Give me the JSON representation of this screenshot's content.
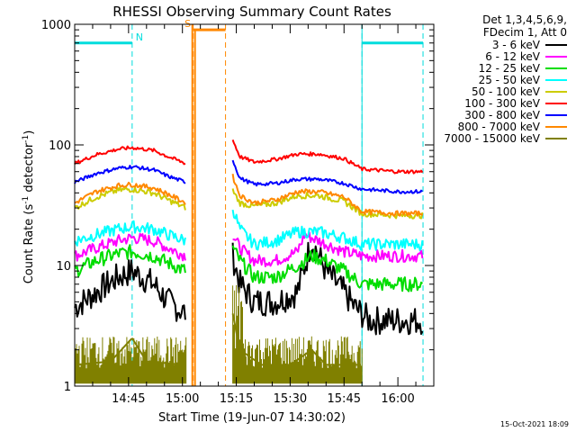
{
  "colors": {
    "3-6": "#000000",
    "6-12": "#ff00ff",
    "12-25": "#00dd00",
    "25-50": "#00ffff",
    "50-100": "#cccc00",
    "100-300": "#ff0000",
    "300-800": "#0000ff",
    "800-7000": "#ff8800",
    "7000-15000": "#808000",
    "flag_n": "#00dddd",
    "flag_s": "#ff8800"
  },
  "chart_data": {
    "type": "line",
    "title": "RHESSI Observing Summary Count Rates",
    "xlabel": "Start Time (19-Jun-07 14:30:02)",
    "ylabel": "Count Rate (s⁻¹ detector⁻¹)",
    "ylabel_parts": [
      "Count Rate (s",
      "-1",
      " detector",
      "-1",
      ")"
    ],
    "yscale": "log",
    "ylim": [
      1,
      1000
    ],
    "xlim": [
      "14:30",
      "16:10"
    ],
    "x_ticks": [
      "14:45",
      "15:00",
      "15:15",
      "15:30",
      "15:45",
      "16:00"
    ],
    "y_ticks": [
      "1",
      "10",
      "100",
      "1000"
    ],
    "legend_header": [
      "Det 1,3,4,5,6,9,",
      "FDecim 1, Att 0"
    ],
    "legend_position": "top-right",
    "footer_date": "15-Oct-2021 18:09",
    "flags": [
      {
        "label": "N",
        "color": "flag_n",
        "intervals": [
          [
            "14:30",
            "14:46"
          ],
          [
            "15:50",
            "16:07"
          ]
        ],
        "level": 700
      },
      {
        "label": "S",
        "color": "flag_s",
        "intervals": [
          [
            "15:03",
            "15:12"
          ]
        ],
        "level": 900
      }
    ],
    "night_boundaries": [
      "14:46",
      "15:50",
      "16:07"
    ],
    "saa_boundaries": [
      "15:03",
      "15:12"
    ],
    "gap": [
      "15:02",
      "15:14"
    ],
    "series": [
      {
        "name": "3 - 6 keV",
        "color": "3-6",
        "segments": [
          {
            "x": [
              "14:30",
              "14:36",
              "14:42",
              "14:46",
              "14:52",
              "14:56",
              "15:01"
            ],
            "y": [
              4.5,
              6,
              8,
              9,
              7,
              5,
              4
            ]
          },
          {
            "x": [
              "15:14",
              "15:16",
              "15:20",
              "15:26",
              "15:32",
              "15:36",
              "15:40",
              "15:45",
              "15:48",
              "15:52",
              "16:00",
              "16:07"
            ],
            "y": [
              12,
              7,
              5,
              5,
              6,
              16,
              9,
              6,
              4.5,
              3.5,
              3.5,
              3.5
            ]
          }
        ]
      },
      {
        "name": "6 - 12 keV",
        "color": "6-12",
        "segments": [
          {
            "x": [
              "14:30",
              "14:36",
              "14:42",
              "14:46",
              "14:52",
              "14:56",
              "15:01"
            ],
            "y": [
              12,
              14,
              16,
              17,
              16,
              14,
              12
            ]
          },
          {
            "x": [
              "15:14",
              "15:16",
              "15:20",
              "15:26",
              "15:32",
              "15:34",
              "15:38",
              "15:45",
              "15:50",
              "15:55",
              "16:00",
              "16:07"
            ],
            "y": [
              18,
              14,
              11,
              11,
              13,
              18,
              16,
              13,
              12,
              12,
              12,
              12
            ]
          }
        ]
      },
      {
        "name": "12 - 25 keV",
        "color": "12-25",
        "segments": [
          {
            "x": [
              "14:30",
              "14:36",
              "14:42",
              "14:46",
              "14:52",
              "14:56",
              "15:01"
            ],
            "y": [
              9,
              11,
              12.5,
              13,
              12,
              10.5,
              9
            ]
          },
          {
            "x": [
              "15:14",
              "15:16",
              "15:20",
              "15:26",
              "15:32",
              "15:36",
              "15:40",
              "15:45",
              "15:50",
              "16:00",
              "16:07"
            ],
            "y": [
              14,
              11,
              8,
              8,
              10,
              12,
              11,
              9,
              7,
              7,
              7
            ]
          }
        ]
      },
      {
        "name": "25 - 50 keV",
        "color": "25-50",
        "segments": [
          {
            "x": [
              "14:30",
              "14:36",
              "14:42",
              "14:46",
              "14:52",
              "14:56",
              "15:01"
            ],
            "y": [
              16,
              18,
              20,
              21,
              20,
              18,
              16
            ]
          },
          {
            "x": [
              "15:14",
              "15:16",
              "15:20",
              "15:26",
              "15:32",
              "15:38",
              "15:45",
              "15:50",
              "16:00",
              "16:07"
            ],
            "y": [
              30,
              20,
              15,
              16,
              19,
              19,
              17,
              15,
              15,
              15
            ]
          }
        ]
      },
      {
        "name": "50 - 100 keV",
        "color": "50-100",
        "segments": [
          {
            "x": [
              "14:30",
              "14:36",
              "14:42",
              "14:46",
              "14:52",
              "14:56",
              "15:01"
            ],
            "y": [
              30,
              37,
              42,
              43,
              40,
              35,
              30
            ]
          },
          {
            "x": [
              "15:14",
              "15:16",
              "15:20",
              "15:26",
              "15:32",
              "15:38",
              "15:45",
              "15:50",
              "16:00",
              "16:07"
            ],
            "y": [
              42,
              33,
              31,
              33,
              38,
              38,
              34,
              27,
              26,
              26
            ]
          }
        ]
      },
      {
        "name": "100 - 300 keV",
        "color": "100-300",
        "segments": [
          {
            "x": [
              "14:30",
              "14:36",
              "14:42",
              "14:46",
              "14:52",
              "14:56",
              "15:01"
            ],
            "y": [
              70,
              83,
              92,
              95,
              90,
              80,
              70
            ]
          },
          {
            "x": [
              "15:14",
              "15:16",
              "15:20",
              "15:26",
              "15:32",
              "15:38",
              "15:45",
              "15:50",
              "16:00",
              "16:07"
            ],
            "y": [
              110,
              80,
              72,
              76,
              84,
              84,
              77,
              63,
              60,
              60
            ]
          }
        ]
      },
      {
        "name": "300 - 800 keV",
        "color": "300-800",
        "segments": [
          {
            "x": [
              "14:30",
              "14:36",
              "14:42",
              "14:46",
              "14:52",
              "14:56",
              "15:01"
            ],
            "y": [
              49,
              58,
              64,
              66,
              62,
              55,
              49
            ]
          },
          {
            "x": [
              "15:14",
              "15:16",
              "15:20",
              "15:26",
              "15:32",
              "15:38",
              "15:45",
              "15:50",
              "16:00",
              "16:07"
            ],
            "y": [
              75,
              53,
              47,
              48,
              52,
              52,
              48,
              43,
              41,
              41
            ]
          }
        ]
      },
      {
        "name": "800 - 7000 keV",
        "color": "800-7000",
        "segments": [
          {
            "x": [
              "14:30",
              "14:36",
              "14:42",
              "14:46",
              "14:52",
              "14:56",
              "15:01"
            ],
            "y": [
              33,
              41,
              46,
              47,
              44,
              39,
              33
            ]
          },
          {
            "x": [
              "15:14",
              "15:16",
              "15:20",
              "15:26",
              "15:32",
              "15:38",
              "15:45",
              "15:50",
              "16:00",
              "16:07"
            ],
            "y": [
              55,
              38,
              33,
              35,
              41,
              41,
              37,
              28,
              27,
              27
            ]
          }
        ]
      },
      {
        "name": "7000 - 15000 keV",
        "color": "7000-15000",
        "segments": [
          {
            "x": [
              "14:30",
              "14:40",
              "14:46",
              "14:50",
              "15:01"
            ],
            "y": [
              1.5,
              1.6,
              2.5,
              1.6,
              1.5
            ]
          },
          {
            "x": [
              "15:14",
              "15:16",
              "15:22",
              "15:30",
              "15:36",
              "15:40",
              "15:50"
            ],
            "y": [
              4,
              2,
              1.5,
              1.5,
              2,
              1.5,
              1.5
            ]
          }
        ]
      }
    ]
  }
}
